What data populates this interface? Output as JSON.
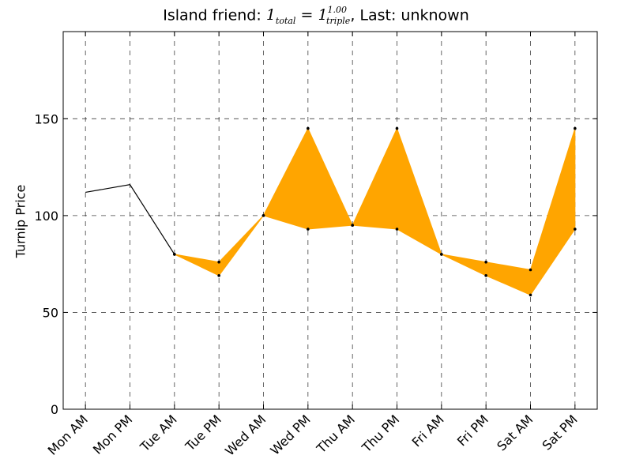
{
  "chart_data": {
    "type": "line",
    "title": {
      "prefix": "Island friend: ",
      "math_a": "1",
      "math_a_sub": "total",
      "math_eq": " = ",
      "math_b": "1",
      "math_b_sub": "triple",
      "math_b_sup": "1.00",
      "suffix": ", Last: unknown"
    },
    "xlabel": "",
    "ylabel": "Turnip Price",
    "categories": [
      "Mon AM",
      "Mon PM",
      "Tue AM",
      "Tue PM",
      "Wed AM",
      "Wed PM",
      "Thu AM",
      "Thu PM",
      "Fri AM",
      "Fri PM",
      "Sat AM",
      "Sat PM"
    ],
    "ylim": [
      0,
      195
    ],
    "yticks": [
      0,
      50,
      100,
      150
    ],
    "grid": true,
    "known_prices": [
      112,
      116
    ],
    "range_min": [
      null,
      null,
      80,
      69,
      100,
      93,
      95,
      93,
      80,
      69,
      59,
      93
    ],
    "range_max": [
      null,
      null,
      80,
      76,
      100,
      145,
      95,
      145,
      80,
      76,
      72,
      145
    ],
    "colors": {
      "line": "#000000",
      "fill": "#ffa500",
      "grid": "#000000"
    }
  }
}
